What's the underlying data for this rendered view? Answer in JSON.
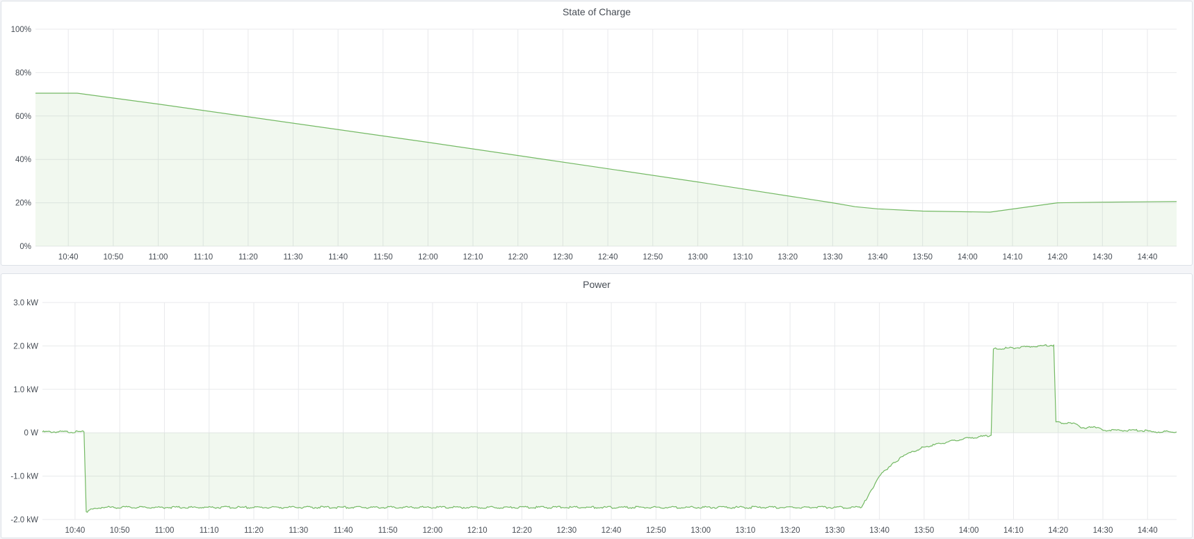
{
  "colors": {
    "line": "#73b963",
    "fill": "rgba(115,185,99,0.1)",
    "grid": "#e8e9ec"
  },
  "chart_data": [
    {
      "type": "area",
      "title": "State of Charge",
      "xlim": [
        "10:32.7",
        "14:46.5"
      ],
      "ylim": [
        0,
        100
      ],
      "yticks": [
        "0%",
        "20%",
        "40%",
        "60%",
        "80%",
        "100%"
      ],
      "ytick_values": [
        0,
        20,
        40,
        60,
        80,
        100
      ],
      "xticks": [
        "10:40",
        "10:50",
        "11:00",
        "11:10",
        "11:20",
        "11:30",
        "11:40",
        "11:50",
        "12:00",
        "12:10",
        "12:20",
        "12:30",
        "12:40",
        "12:50",
        "13:00",
        "13:10",
        "13:20",
        "13:30",
        "13:40",
        "13:50",
        "14:00",
        "14:10",
        "14:20",
        "14:30",
        "14:40"
      ],
      "grid": true,
      "x": [
        "10:32.7",
        "10:42",
        "11:00",
        "12:00",
        "13:00",
        "13:30",
        "13:35",
        "13:40",
        "13:50",
        "14:05",
        "14:20",
        "14:30",
        "14:46.5"
      ],
      "y": [
        70.5,
        70.5,
        65.5,
        47.9,
        29.6,
        20.0,
        18.2,
        17.2,
        16.2,
        15.7,
        20.0,
        20.3,
        20.6
      ]
    },
    {
      "type": "area",
      "title": "Power",
      "xlim": [
        "10:32.7",
        "14:46.5"
      ],
      "ylim": [
        -2.0,
        3.0
      ],
      "yticks": [
        "-2.0 kW",
        "-1.0 kW",
        "0 W",
        "1.0 kW",
        "2.0 kW",
        "3.0 kW"
      ],
      "ytick_values": [
        -2,
        -1,
        0,
        1,
        2,
        3
      ],
      "xticks": [
        "10:40",
        "10:50",
        "11:00",
        "11:10",
        "11:20",
        "11:30",
        "11:40",
        "11:50",
        "12:00",
        "12:10",
        "12:20",
        "12:30",
        "12:40",
        "12:50",
        "13:00",
        "13:10",
        "13:20",
        "13:30",
        "13:40",
        "13:50",
        "14:00",
        "14:10",
        "14:20",
        "14:30",
        "14:40"
      ],
      "grid": true,
      "x": [
        "10:32.7",
        "10:42",
        "10:42.5",
        "10:44",
        "10:46",
        "13:36",
        "13:38",
        "13:40",
        "13:43",
        "13:46",
        "13:50",
        "13:55",
        "14:00",
        "14:05",
        "14:05.5",
        "14:19",
        "14:19.5",
        "14:21",
        "14:24",
        "14:25",
        "14:29",
        "14:30",
        "14:40",
        "14:41",
        "14:46.5"
      ],
      "y": [
        0.02,
        0.02,
        -1.82,
        -1.76,
        -1.72,
        -1.72,
        -1.35,
        -1.0,
        -0.7,
        -0.5,
        -0.33,
        -0.22,
        -0.12,
        -0.06,
        1.93,
        2.02,
        0.25,
        0.22,
        0.2,
        0.12,
        0.12,
        0.06,
        0.05,
        0.02,
        0.02
      ]
    }
  ]
}
